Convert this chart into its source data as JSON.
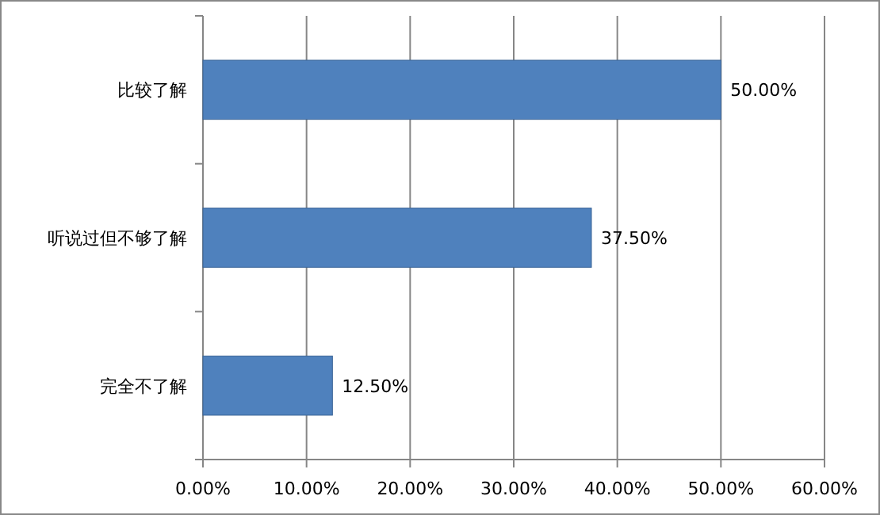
{
  "chart_data": {
    "type": "bar",
    "orientation": "horizontal",
    "categories": [
      "比较了解",
      "听说过但不够了解",
      "完全不了解"
    ],
    "values": [
      50,
      37.5,
      12.5
    ],
    "color": "#4f81bd",
    "value_labels": [
      "50.00%",
      "37.50%",
      "12.50%"
    ],
    "xlim": [
      0,
      60
    ],
    "xticks": [
      {
        "value": 0,
        "label": "0.00%"
      },
      {
        "value": 10,
        "label": "10.00%"
      },
      {
        "value": 20,
        "label": "20.00%"
      },
      {
        "value": 30,
        "label": "30.00%"
      },
      {
        "value": 40,
        "label": "40.00%"
      },
      {
        "value": 50,
        "label": "50.00%"
      },
      {
        "value": 60,
        "label": "60.00%"
      }
    ],
    "grid": "x"
  }
}
